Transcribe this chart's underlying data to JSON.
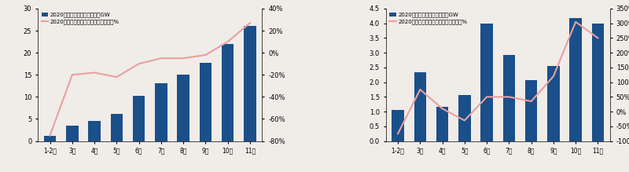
{
  "chart1": {
    "categories": [
      "1-2月",
      "3月",
      "4月",
      "5月",
      "6月",
      "7月",
      "8月",
      "9月",
      "10月",
      "11月"
    ],
    "bar_values": [
      1.1,
      3.5,
      4.6,
      6.2,
      10.2,
      13.1,
      15.1,
      17.8,
      22.0,
      26.0
    ],
    "line_values": [
      -0.75,
      -0.2,
      -0.18,
      -0.22,
      -0.1,
      -0.05,
      -0.05,
      -0.02,
      0.1,
      0.27
    ],
    "bar_color": "#1a4f8a",
    "line_color": "#e8a0a0",
    "bar_label": "2020年光伏新增累计装机量，GW",
    "line_label": "2020年光伏新增累计装机量同比增速，%",
    "ylim_bar": [
      0,
      30
    ],
    "ylim_line": [
      -0.8,
      0.4
    ],
    "yticks_bar": [
      0,
      5,
      10,
      15,
      20,
      25,
      30
    ],
    "yticks_line_vals": [
      -0.8,
      -0.6,
      -0.4,
      -0.2,
      0.0,
      0.2,
      0.4
    ],
    "yticks_line_labels": [
      "-80%",
      "-60%",
      "-40%",
      "-20%",
      "0%",
      "20%",
      "40%"
    ]
  },
  "chart2": {
    "categories": [
      "1-2月",
      "3月",
      "4月",
      "5月",
      "6月",
      "7月",
      "8月",
      "9月",
      "10月",
      "11月"
    ],
    "bar_values": [
      1.05,
      2.35,
      1.15,
      1.55,
      4.0,
      2.92,
      2.08,
      2.55,
      4.18,
      4.0
    ],
    "line_values": [
      -0.75,
      0.75,
      0.1,
      -0.3,
      0.5,
      0.5,
      0.35,
      1.2,
      3.05,
      2.5
    ],
    "bar_color": "#1a4f8a",
    "line_color": "#e8a0a0",
    "bar_label": "2020年光伏每月新增装机量，GW",
    "line_label": "2020年光伏每月新增装机量同比增速，%",
    "ylim_bar": [
      0,
      4.5
    ],
    "ylim_line": [
      -1.0,
      3.5
    ],
    "yticks_bar": [
      0,
      0.5,
      1.0,
      1.5,
      2.0,
      2.5,
      3.0,
      3.5,
      4.0,
      4.5
    ],
    "yticks_line_vals": [
      -1.0,
      -0.5,
      0.0,
      0.5,
      1.0,
      1.5,
      2.0,
      2.5,
      3.0,
      3.5
    ],
    "yticks_line_labels": [
      "-100%",
      "-50%",
      "0%",
      "50%",
      "100%",
      "150%",
      "200%",
      "250%",
      "300%",
      "350%"
    ]
  },
  "bg_color": "#ffffff",
  "figure_bg": "#f0ece8",
  "panel_bg": "#f0ece8"
}
